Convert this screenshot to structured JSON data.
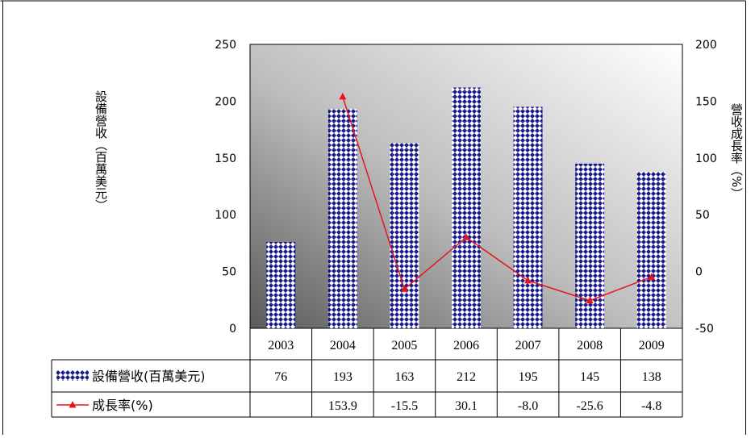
{
  "chart_data": {
    "type": "bar",
    "categories": [
      "2003",
      "2004",
      "2005",
      "2006",
      "2007",
      "2008",
      "2009"
    ],
    "series": [
      {
        "name": "設備營收(百萬美元)",
        "kind": "bar",
        "axis": "left",
        "values": [
          76,
          193,
          163,
          212,
          195,
          145,
          138
        ],
        "color": "#1a1a8c"
      },
      {
        "name": "成長率(%)",
        "kind": "line",
        "axis": "right",
        "values": [
          null,
          153.9,
          -15.5,
          30.1,
          -8.0,
          -25.6,
          -4.8
        ],
        "color": "#e8141c"
      }
    ],
    "table_rows": [
      [
        "76",
        "193",
        "163",
        "212",
        "195",
        "145",
        "138"
      ],
      [
        "",
        "153.9",
        "-15.5",
        "30.1",
        "-8.0",
        "-25.6",
        "-4.8"
      ]
    ],
    "ylabel_left": "設備營收（百萬美元）",
    "ylabel_right": "營收成長率（%）",
    "ylim_left": [
      0,
      250
    ],
    "ylim_right": [
      -50,
      200
    ],
    "yticks_left": [
      "0",
      "50",
      "100",
      "150",
      "200",
      "250"
    ],
    "yticks_right": [
      "-50",
      "0",
      "50",
      "100",
      "150",
      "200"
    ],
    "grid": false,
    "legend": "data-table"
  }
}
